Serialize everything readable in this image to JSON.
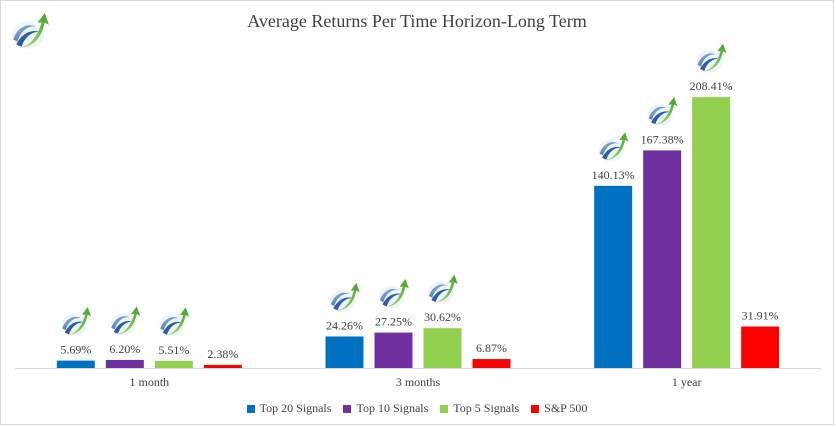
{
  "chart_data": {
    "type": "bar",
    "title": "Average Returns Per Time Horizon-Long Term",
    "categories": [
      "1 month",
      "3 months",
      "1 year"
    ],
    "series": [
      {
        "name": "Top 20 Signals",
        "color": "#0070C0",
        "values": [
          5.69,
          24.26,
          140.13
        ],
        "labels": [
          "5.69%",
          "24.26%",
          "140.13%"
        ]
      },
      {
        "name": "Top 10 Signals",
        "color": "#7030A0",
        "values": [
          6.2,
          27.25,
          167.38
        ],
        "labels": [
          "6.20%",
          "27.25%",
          "167.38%"
        ]
      },
      {
        "name": "Top 5 Signals",
        "color": "#92D050",
        "values": [
          5.51,
          30.62,
          208.41
        ],
        "labels": [
          "5.51%",
          "30.62%",
          "208.41%"
        ]
      },
      {
        "name": "S&P 500",
        "color": "#FF0000",
        "values": [
          2.38,
          6.87,
          31.91
        ],
        "labels": [
          "2.38%",
          "6.87%",
          "31.91%"
        ]
      }
    ],
    "logo_series": [
      "Top 20 Signals",
      "Top 10 Signals",
      "Top 5 Signals"
    ],
    "ylim": [
      0,
      240
    ],
    "grid": false,
    "legend_position": "bottom",
    "logo_icon": "arrow-logo-icon"
  }
}
